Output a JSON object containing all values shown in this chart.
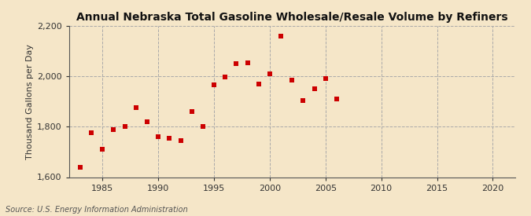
{
  "title": "Annual Nebraska Total Gasoline Wholesale/Resale Volume by Refiners",
  "ylabel": "Thousand Gallons per Day",
  "source": "Source: U.S. Energy Information Administration",
  "background_color": "#f5e6c8",
  "plot_background_color": "#f5e6c8",
  "marker_color": "#cc0000",
  "years": [
    1983,
    1984,
    1985,
    1986,
    1987,
    1988,
    1989,
    1990,
    1991,
    1992,
    1993,
    1994,
    1995,
    1996,
    1997,
    1998,
    1999,
    2000,
    2001,
    2002,
    2003,
    2004,
    2005,
    2006
  ],
  "values": [
    1638,
    1775,
    1710,
    1790,
    1800,
    1875,
    1820,
    1760,
    1755,
    1745,
    1860,
    1800,
    1965,
    1998,
    2050,
    2055,
    1970,
    2010,
    2160,
    1985,
    1905,
    1950,
    1990,
    1910
  ],
  "xlim": [
    1982,
    2022
  ],
  "ylim": [
    1600,
    2200
  ],
  "xticks": [
    1985,
    1990,
    1995,
    2000,
    2005,
    2010,
    2015,
    2020
  ],
  "yticks": [
    1600,
    1800,
    2000,
    2200
  ],
  "ytick_labels": [
    "1,600",
    "1,800",
    "2,000",
    "2,200"
  ],
  "title_fontsize": 10,
  "label_fontsize": 8,
  "tick_fontsize": 8,
  "source_fontsize": 7,
  "marker_size": 18
}
